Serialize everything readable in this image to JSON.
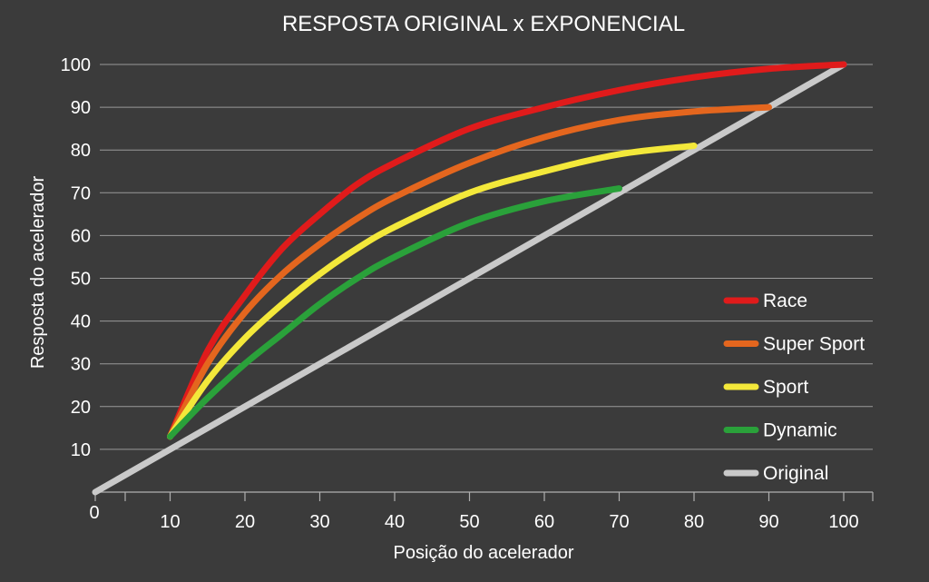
{
  "chart_data": {
    "type": "line",
    "title": "RESPOSTA ORIGINAL x EXPONENCIAL",
    "xlabel": "Posição do acelerador",
    "ylabel": "Resposta do acelerador",
    "xlim": [
      0,
      100
    ],
    "ylim": [
      0,
      100
    ],
    "x_ticks": [
      10,
      20,
      30,
      40,
      50,
      60,
      70,
      80,
      90,
      100
    ],
    "y_ticks": [
      10,
      20,
      30,
      40,
      50,
      60,
      70,
      80,
      90,
      100
    ],
    "origin_label": "0",
    "grid": true,
    "legend_position": "bottom-right",
    "series": [
      {
        "name": "Race",
        "color": "#e01b1b",
        "points": [
          [
            10,
            13
          ],
          [
            15,
            33
          ],
          [
            20,
            46
          ],
          [
            25,
            57
          ],
          [
            30,
            65
          ],
          [
            35,
            72
          ],
          [
            40,
            77
          ],
          [
            50,
            85
          ],
          [
            60,
            90
          ],
          [
            70,
            94
          ],
          [
            80,
            97
          ],
          [
            90,
            99
          ],
          [
            100,
            100
          ]
        ]
      },
      {
        "name": "Super Sport",
        "color": "#e4661e",
        "points": [
          [
            10,
            13
          ],
          [
            15,
            30
          ],
          [
            20,
            42
          ],
          [
            25,
            51
          ],
          [
            30,
            58
          ],
          [
            35,
            64
          ],
          [
            40,
            69
          ],
          [
            50,
            77
          ],
          [
            60,
            83
          ],
          [
            70,
            87
          ],
          [
            80,
            89
          ],
          [
            90,
            90
          ]
        ]
      },
      {
        "name": "Sport",
        "color": "#f3e83a",
        "points": [
          [
            10,
            13
          ],
          [
            15,
            26
          ],
          [
            20,
            36
          ],
          [
            25,
            44
          ],
          [
            30,
            51
          ],
          [
            35,
            57
          ],
          [
            40,
            62
          ],
          [
            50,
            70
          ],
          [
            60,
            75
          ],
          [
            70,
            79
          ],
          [
            80,
            81
          ]
        ]
      },
      {
        "name": "Dynamic",
        "color": "#2aa13a",
        "points": [
          [
            10,
            13
          ],
          [
            15,
            22
          ],
          [
            20,
            30
          ],
          [
            25,
            37
          ],
          [
            30,
            44
          ],
          [
            35,
            50
          ],
          [
            40,
            55
          ],
          [
            50,
            63
          ],
          [
            60,
            68
          ],
          [
            70,
            71
          ]
        ]
      },
      {
        "name": "Original",
        "color": "#c9c9c9",
        "points": [
          [
            0,
            0
          ],
          [
            100,
            100
          ]
        ]
      }
    ]
  }
}
